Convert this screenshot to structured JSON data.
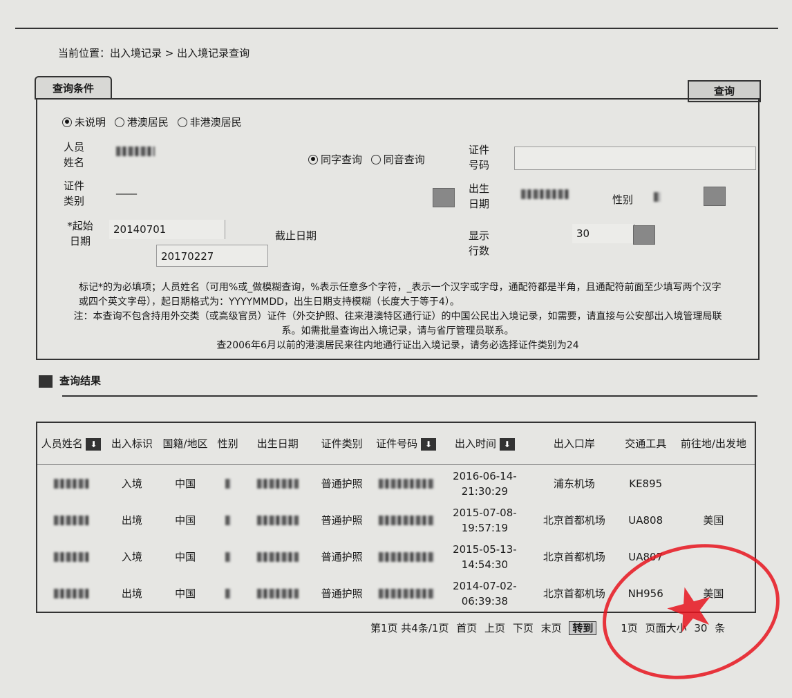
{
  "breadcrumb": "当前位置：出入境记录 > 出入境记录查询",
  "query": {
    "tab": "查询条件",
    "button": "查询",
    "residency": [
      "未说明",
      "港澳居民",
      "非港澳居民"
    ],
    "name_label": "人员姓名",
    "match": [
      "同字查询",
      "同音查询"
    ],
    "id_no_label": "证件号码",
    "id_type_label": "证件类别",
    "id_type_value": "____",
    "birth_label": "出生日期",
    "gender_label": "性别",
    "start_label": "*起始日期",
    "start_value": "20140701",
    "end_label": "截止日期",
    "end_value": "20170227",
    "rows_label": "显示行数",
    "rows_value": "30",
    "notes": [
      "标记*的为必填项；人员姓名（可用%或_做模糊查询，%表示任意多个字符，_表示一个汉字或字母，通配符都是半角，且通配符前面至少填写两个汉字或四个英文字母），起日期格式为：YYYYMMDD，出生日期支持模糊（长度大于等于4）。",
      "注：本查询不包含持用外交类（或高级官员）证件（外交护照、往来港澳特区通行证）的中国公民出入境记录，如需要，请直接与公安部出入境管理局联系。如需批量查询出入境记录，请与省厅管理员联系。",
      "查2006年6月以前的港澳居民来往内地通行证出入境记录，请务必选择证件类别为24"
    ]
  },
  "results": {
    "title": "查询结果",
    "columns": [
      "人员姓名",
      "出入标识",
      "国籍/地区",
      "性别",
      "出生日期",
      "证件类别",
      "证件号码",
      "出入时间",
      "出入口岸",
      "交通工具",
      "前往地/出发地"
    ],
    "rows": [
      {
        "dir": "入境",
        "nat": "中国",
        "type": "普通护照",
        "time": "2016-06-14-21:30:29",
        "port": "浦东机场",
        "vehicle": "KE895",
        "dest": ""
      },
      {
        "dir": "出境",
        "nat": "中国",
        "type": "普通护照",
        "time": "2015-07-08-19:57:19",
        "port": "北京首都机场",
        "vehicle": "UA808",
        "dest": "美国"
      },
      {
        "dir": "入境",
        "nat": "中国",
        "type": "普通护照",
        "time": "2015-05-13-14:54:30",
        "port": "北京首都机场",
        "vehicle": "UA807",
        "dest": ""
      },
      {
        "dir": "出境",
        "nat": "中国",
        "type": "普通护照",
        "time": "2014-07-02-06:39:38",
        "port": "北京首都机场",
        "vehicle": "NH956",
        "dest": "美国"
      }
    ]
  },
  "pager": {
    "info": "第1页 共4条/1页",
    "first": "首页",
    "prev": "上页",
    "next": "下页",
    "last": "末页",
    "goto": "转到",
    "page": "1",
    "page_unit": "页",
    "size_label": "页面大小",
    "size": "30",
    "size_unit": "条"
  },
  "seal_color": "#e6141e"
}
